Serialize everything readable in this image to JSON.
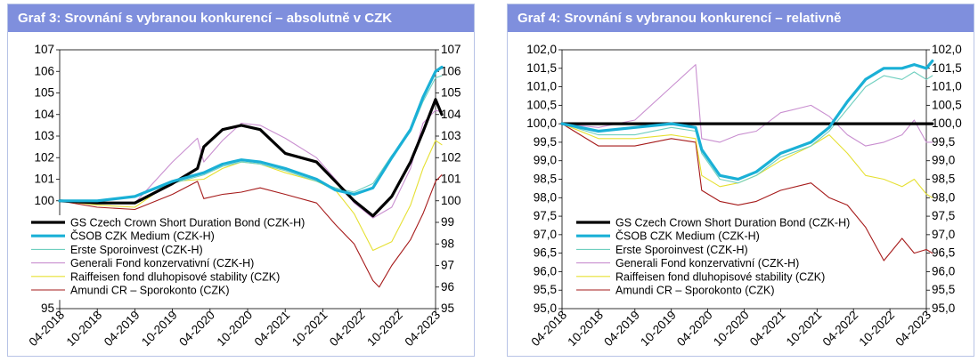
{
  "colors": {
    "header_bg": "#7f8fdd",
    "header_text": "#ffffff",
    "border": "#b7c3e6"
  },
  "series_styles": [
    {
      "color": "#000000",
      "width": 3.2
    },
    {
      "color": "#1ab0d6",
      "width": 3.2
    },
    {
      "color": "#6fcfbf",
      "width": 1.1
    },
    {
      "color": "#c98fd0",
      "width": 1.1
    },
    {
      "color": "#e6e033",
      "width": 1.1
    },
    {
      "color": "#a61b1b",
      "width": 1.1
    }
  ],
  "legend_labels": [
    "GS Czech Crown Short Duration Bond (CZK-H)",
    "ČSOB CZK Medium (CZK-H)",
    "Erste Sporoinvest (CZK-H)",
    "Generali Fond konzervativní (CZK-H)",
    "Raiffeisen fond dluhopisové stability (CZK)",
    "Amundi CR – Sporokonto (CZK)"
  ],
  "chart_data": [
    {
      "type": "line",
      "title": "Graf 3: Srovnání s vybranou konkurencí – absolutně v CZK",
      "x_axis": "date",
      "x_ticks": [
        "04-2018",
        "10-2018",
        "04-2019",
        "10-2019",
        "04-2020",
        "10-2020",
        "04-2021",
        "10-2021",
        "04-2022",
        "10-2022",
        "04-2023"
      ],
      "y_ticks": [
        "95",
        "96",
        "97",
        "98",
        "99",
        "100",
        "101",
        "102",
        "103",
        "104",
        "105",
        "106",
        "107"
      ],
      "y_tick_values": [
        95,
        96,
        97,
        98,
        99,
        100,
        101,
        102,
        103,
        104,
        105,
        106,
        107
      ],
      "ylim": [
        95,
        107
      ],
      "grid": false,
      "legend_position": "bottom-left",
      "series": [
        {
          "name": "GS Czech Crown Short Duration Bond (CZK-H)",
          "points": [
            [
              "2018-04",
              100.0
            ],
            [
              "2018-10",
              99.9
            ],
            [
              "2019-04",
              99.9
            ],
            [
              "2019-10",
              100.8
            ],
            [
              "2020-02",
              101.5
            ],
            [
              "2020-03",
              102.5
            ],
            [
              "2020-06",
              103.3
            ],
            [
              "2020-09",
              103.5
            ],
            [
              "2020-12",
              103.3
            ],
            [
              "2021-04",
              102.2
            ],
            [
              "2021-09",
              101.8
            ],
            [
              "2021-12",
              100.9
            ],
            [
              "2022-03",
              100.0
            ],
            [
              "2022-06",
              99.3
            ],
            [
              "2022-09",
              100.2
            ],
            [
              "2022-12",
              101.8
            ],
            [
              "2023-02",
              103.2
            ],
            [
              "2023-04",
              104.7
            ],
            [
              "2023-05",
              104.0
            ]
          ]
        },
        {
          "name": "ČSOB CZK Medium (CZK-H)",
          "points": [
            [
              "2018-04",
              100.0
            ],
            [
              "2018-10",
              100.0
            ],
            [
              "2019-04",
              100.2
            ],
            [
              "2019-10",
              100.9
            ],
            [
              "2020-03",
              101.3
            ],
            [
              "2020-06",
              101.7
            ],
            [
              "2020-09",
              101.9
            ],
            [
              "2020-12",
              101.8
            ],
            [
              "2021-04",
              101.5
            ],
            [
              "2021-09",
              101.0
            ],
            [
              "2021-12",
              100.5
            ],
            [
              "2022-03",
              100.3
            ],
            [
              "2022-06",
              100.6
            ],
            [
              "2022-09",
              102.0
            ],
            [
              "2022-12",
              103.3
            ],
            [
              "2023-02",
              104.8
            ],
            [
              "2023-04",
              106.0
            ],
            [
              "2023-05",
              106.2
            ]
          ]
        },
        {
          "name": "Erste Sporoinvest (CZK-H)",
          "points": [
            [
              "2018-04",
              100.0
            ],
            [
              "2018-10",
              100.0
            ],
            [
              "2019-04",
              100.2
            ],
            [
              "2019-10",
              100.8
            ],
            [
              "2020-03",
              101.2
            ],
            [
              "2020-06",
              101.6
            ],
            [
              "2020-09",
              101.8
            ],
            [
              "2020-12",
              101.7
            ],
            [
              "2021-04",
              101.4
            ],
            [
              "2021-09",
              100.9
            ],
            [
              "2021-12",
              100.6
            ],
            [
              "2022-03",
              100.4
            ],
            [
              "2022-06",
              100.8
            ],
            [
              "2022-09",
              102.1
            ],
            [
              "2022-12",
              103.2
            ],
            [
              "2023-02",
              104.6
            ],
            [
              "2023-04",
              105.7
            ],
            [
              "2023-05",
              105.8
            ]
          ]
        },
        {
          "name": "Generali Fond konzervativní (CZK-H)",
          "points": [
            [
              "2018-04",
              100.0
            ],
            [
              "2018-10",
              99.9
            ],
            [
              "2019-04",
              99.9
            ],
            [
              "2019-10",
              101.8
            ],
            [
              "2020-02",
              102.9
            ],
            [
              "2020-03",
              101.8
            ],
            [
              "2020-06",
              102.8
            ],
            [
              "2020-09",
              103.6
            ],
            [
              "2020-12",
              103.5
            ],
            [
              "2021-04",
              102.9
            ],
            [
              "2021-09",
              102.0
            ],
            [
              "2021-12",
              101.0
            ],
            [
              "2022-03",
              99.9
            ],
            [
              "2022-06",
              99.2
            ],
            [
              "2022-09",
              99.7
            ],
            [
              "2022-12",
              101.5
            ],
            [
              "2023-02",
              103.6
            ],
            [
              "2023-04",
              104.2
            ],
            [
              "2023-05",
              104.1
            ]
          ]
        },
        {
          "name": "Raiffeisen fond dluhopisové stability (CZK)",
          "points": [
            [
              "2018-04",
              100.0
            ],
            [
              "2018-10",
              99.8
            ],
            [
              "2019-04",
              99.7
            ],
            [
              "2019-10",
              100.9
            ],
            [
              "2020-03",
              101.0
            ],
            [
              "2020-06",
              101.5
            ],
            [
              "2020-09",
              101.8
            ],
            [
              "2020-12",
              101.7
            ],
            [
              "2021-04",
              101.3
            ],
            [
              "2021-09",
              100.9
            ],
            [
              "2021-12",
              100.5
            ],
            [
              "2022-03",
              99.4
            ],
            [
              "2022-06",
              97.7
            ],
            [
              "2022-09",
              98.1
            ],
            [
              "2022-12",
              99.8
            ],
            [
              "2023-02",
              101.5
            ],
            [
              "2023-04",
              102.8
            ],
            [
              "2023-05",
              102.6
            ]
          ]
        },
        {
          "name": "Amundi CR – Sporokonto (CZK)",
          "points": [
            [
              "2018-04",
              100.0
            ],
            [
              "2018-10",
              99.7
            ],
            [
              "2019-04",
              99.6
            ],
            [
              "2019-10",
              100.3
            ],
            [
              "2020-02",
              100.9
            ],
            [
              "2020-03",
              100.1
            ],
            [
              "2020-06",
              100.3
            ],
            [
              "2020-09",
              100.4
            ],
            [
              "2020-12",
              100.6
            ],
            [
              "2021-04",
              100.3
            ],
            [
              "2021-09",
              99.9
            ],
            [
              "2021-12",
              98.9
            ],
            [
              "2022-03",
              98.0
            ],
            [
              "2022-06",
              96.3
            ],
            [
              "2022-07",
              96.0
            ],
            [
              "2022-09",
              97.0
            ],
            [
              "2022-12",
              98.2
            ],
            [
              "2023-02",
              99.4
            ],
            [
              "2023-04",
              100.9
            ],
            [
              "2023-05",
              101.2
            ]
          ]
        }
      ]
    },
    {
      "type": "line",
      "title": "Graf 4: Srovnání s vybranou konkurencí – relativně",
      "x_axis": "date",
      "x_ticks": [
        "04-2018",
        "10-2018",
        "04-2019",
        "10-2019",
        "04-2020",
        "10-2020",
        "04-2021",
        "10-2021",
        "04-2022",
        "10-2022",
        "04-2023"
      ],
      "y_ticks": [
        "95,0",
        "95,5",
        "96,0",
        "96,5",
        "97,0",
        "97,5",
        "98,0",
        "98,5",
        "99,0",
        "99,5",
        "100,0",
        "100,5",
        "101,0",
        "101,5",
        "102,0"
      ],
      "y_tick_values": [
        95,
        95.5,
        96,
        96.5,
        97,
        97.5,
        98,
        98.5,
        99,
        99.5,
        100,
        100.5,
        101,
        101.5,
        102
      ],
      "ylim": [
        95,
        102
      ],
      "grid": false,
      "legend_position": "bottom-left",
      "series": [
        {
          "name": "GS Czech Crown Short Duration Bond (CZK-H)",
          "points": [
            [
              "2018-04",
              100.0
            ],
            [
              "2023-05",
              100.0
            ]
          ]
        },
        {
          "name": "ČSOB CZK Medium (CZK-H)",
          "points": [
            [
              "2018-04",
              100.0
            ],
            [
              "2018-10",
              99.8
            ],
            [
              "2019-04",
              99.9
            ],
            [
              "2019-10",
              100.0
            ],
            [
              "2020-02",
              99.9
            ],
            [
              "2020-03",
              99.3
            ],
            [
              "2020-06",
              98.6
            ],
            [
              "2020-09",
              98.5
            ],
            [
              "2020-12",
              98.7
            ],
            [
              "2021-04",
              99.2
            ],
            [
              "2021-09",
              99.5
            ],
            [
              "2021-12",
              99.9
            ],
            [
              "2022-03",
              100.6
            ],
            [
              "2022-06",
              101.2
            ],
            [
              "2022-09",
              101.5
            ],
            [
              "2022-12",
              101.5
            ],
            [
              "2023-02",
              101.6
            ],
            [
              "2023-04",
              101.5
            ],
            [
              "2023-05",
              101.7
            ]
          ]
        },
        {
          "name": "Erste Sporoinvest (CZK-H)",
          "points": [
            [
              "2018-04",
              100.0
            ],
            [
              "2018-10",
              99.7
            ],
            [
              "2019-04",
              99.7
            ],
            [
              "2019-10",
              99.9
            ],
            [
              "2020-02",
              99.8
            ],
            [
              "2020-03",
              99.2
            ],
            [
              "2020-06",
              98.5
            ],
            [
              "2020-09",
              98.4
            ],
            [
              "2020-12",
              98.6
            ],
            [
              "2021-04",
              99.1
            ],
            [
              "2021-09",
              99.4
            ],
            [
              "2021-12",
              99.8
            ],
            [
              "2022-03",
              100.4
            ],
            [
              "2022-06",
              101.0
            ],
            [
              "2022-09",
              101.3
            ],
            [
              "2022-12",
              101.2
            ],
            [
              "2023-02",
              101.4
            ],
            [
              "2023-04",
              101.2
            ],
            [
              "2023-05",
              101.3
            ]
          ]
        },
        {
          "name": "Generali Fond konzervativní (CZK-H)",
          "points": [
            [
              "2018-04",
              100.0
            ],
            [
              "2018-10",
              99.9
            ],
            [
              "2019-04",
              100.1
            ],
            [
              "2019-10",
              101.0
            ],
            [
              "2020-02",
              101.6
            ],
            [
              "2020-03",
              99.6
            ],
            [
              "2020-06",
              99.5
            ],
            [
              "2020-09",
              99.7
            ],
            [
              "2020-12",
              99.8
            ],
            [
              "2021-04",
              100.3
            ],
            [
              "2021-09",
              100.5
            ],
            [
              "2021-12",
              100.2
            ],
            [
              "2022-03",
              99.7
            ],
            [
              "2022-06",
              99.4
            ],
            [
              "2022-09",
              99.5
            ],
            [
              "2022-12",
              99.7
            ],
            [
              "2023-02",
              100.1
            ],
            [
              "2023-04",
              99.5
            ],
            [
              "2023-05",
              99.5
            ]
          ]
        },
        {
          "name": "Raiffeisen fond dluhopisové stability (CZK)",
          "points": [
            [
              "2018-04",
              100.0
            ],
            [
              "2018-10",
              99.6
            ],
            [
              "2019-04",
              99.6
            ],
            [
              "2019-10",
              99.7
            ],
            [
              "2020-02",
              99.6
            ],
            [
              "2020-03",
              98.6
            ],
            [
              "2020-06",
              98.3
            ],
            [
              "2020-09",
              98.4
            ],
            [
              "2020-12",
              98.6
            ],
            [
              "2021-04",
              99.0
            ],
            [
              "2021-09",
              99.4
            ],
            [
              "2021-12",
              99.7
            ],
            [
              "2022-03",
              99.2
            ],
            [
              "2022-06",
              98.6
            ],
            [
              "2022-09",
              98.5
            ],
            [
              "2022-12",
              98.3
            ],
            [
              "2023-02",
              98.5
            ],
            [
              "2023-04",
              98.1
            ],
            [
              "2023-05",
              98.0
            ]
          ]
        },
        {
          "name": "Amundi CR – Sporokonto (CZK)",
          "points": [
            [
              "2018-04",
              100.0
            ],
            [
              "2018-10",
              99.4
            ],
            [
              "2019-04",
              99.4
            ],
            [
              "2019-10",
              99.6
            ],
            [
              "2020-02",
              99.5
            ],
            [
              "2020-03",
              98.2
            ],
            [
              "2020-06",
              97.9
            ],
            [
              "2020-09",
              97.8
            ],
            [
              "2020-12",
              97.9
            ],
            [
              "2021-04",
              98.2
            ],
            [
              "2021-09",
              98.4
            ],
            [
              "2021-12",
              98.0
            ],
            [
              "2022-03",
              97.8
            ],
            [
              "2022-06",
              97.2
            ],
            [
              "2022-09",
              96.3
            ],
            [
              "2022-12",
              96.9
            ],
            [
              "2023-02",
              96.5
            ],
            [
              "2023-04",
              96.6
            ],
            [
              "2023-05",
              96.5
            ]
          ]
        }
      ]
    }
  ]
}
